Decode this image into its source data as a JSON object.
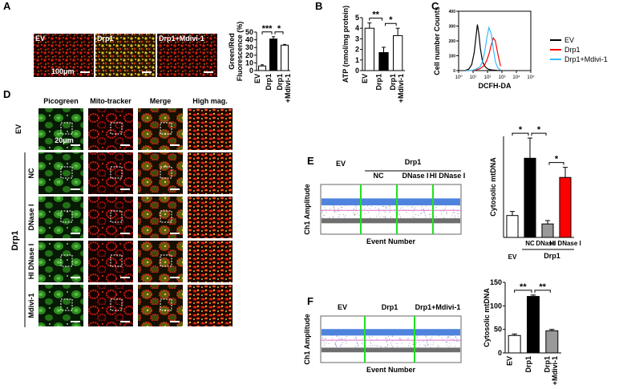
{
  "panel_labels": [
    "A",
    "B",
    "C",
    "D",
    "E",
    "F"
  ],
  "panel_a_images": {
    "labels": [
      "EV",
      "Drp1",
      "Drp1+Mdivi-1"
    ],
    "scale_bar": "100μm"
  },
  "panel_d_images": {
    "columns": [
      "Picogreen",
      "Mito-tracker",
      "Merge",
      "High mag."
    ],
    "rows": [
      "EV",
      "NC",
      "DNase I",
      "HI DNase I",
      "Mdivi-1"
    ],
    "group_label": "Drp1",
    "scale_bar": "20μm"
  },
  "panel_e_droplets": {
    "y_label": "Ch1 Amplitude",
    "x_label": "Event Number",
    "labels": [
      "EV",
      "NC",
      "DNase I",
      "HI DNase I"
    ],
    "group_label": "Drp1"
  },
  "panel_f_droplets": {
    "y_label": "Ch1 Amplitude",
    "x_label": "Event Number",
    "labels": [
      "EV",
      "Drp1",
      "Drp1+Mdivi-1"
    ]
  },
  "chart_data": [
    {
      "type": "bar",
      "y_label": [
        "Green/Red",
        "Fluorescence (%)"
      ],
      "categories": [
        "EV",
        "Drp1",
        "Drp1\n+Mdivi-1"
      ],
      "values": [
        6,
        41,
        33
      ],
      "errors": [
        1.5,
        3,
        1
      ],
      "colors": [
        "#ffffff",
        "#000000",
        "#ffffff"
      ],
      "ylim": [
        0,
        50
      ],
      "yticks": [
        0,
        10,
        20,
        30,
        40,
        50
      ],
      "annotations": [
        "***",
        "*"
      ]
    },
    {
      "type": "bar",
      "y_label": [
        "ATP (nmol/mg protein)"
      ],
      "categories": [
        "EV",
        "Drp1",
        "Drp1\n+Mdivi-1"
      ],
      "values": [
        4.0,
        1.7,
        3.3
      ],
      "errors": [
        0.5,
        0.5,
        0.7
      ],
      "colors": [
        "#ffffff",
        "#000000",
        "#ffffff"
      ],
      "ylim": [
        0,
        5
      ],
      "yticks": [
        0,
        1,
        2,
        3,
        4,
        5
      ],
      "annotations": [
        "**",
        "*"
      ]
    },
    {
      "type": "line",
      "y_label": [
        "Cell number Counts"
      ],
      "x_label": "DCFH-DA",
      "log_x": true,
      "xlim": [
        1,
        100000
      ],
      "xticks": [
        {
          "value": 1,
          "label": "10⁰"
        },
        {
          "value": 10,
          "label": "10¹"
        },
        {
          "value": 100,
          "label": "10²"
        },
        {
          "value": 1000,
          "label": "10³"
        },
        {
          "value": 10000,
          "label": "10⁴"
        },
        {
          "value": 100000,
          "label": "10⁵"
        }
      ],
      "ylim": [
        0,
        400
      ],
      "yticks": [
        0,
        100,
        200,
        300,
        400
      ],
      "x": [
        3,
        5,
        8,
        12,
        16,
        20,
        25,
        32,
        45,
        65,
        90,
        125,
        180,
        250,
        350,
        500,
        800
      ],
      "series": [
        {
          "name": "EV",
          "color": "#000000",
          "values": [
            2,
            10,
            40,
            120,
            230,
            310,
            250,
            150,
            60,
            30,
            15,
            8,
            5,
            3,
            2,
            1,
            0
          ]
        },
        {
          "name": "Drp1",
          "color": "#ff0000",
          "values": [
            0,
            0,
            1,
            3,
            5,
            8,
            10,
            15,
            25,
            40,
            70,
            110,
            170,
            220,
            200,
            120,
            30
          ]
        },
        {
          "name": "Drp1+Mdivi-1",
          "color": "#33bbff",
          "values": [
            0,
            0,
            2,
            5,
            10,
            15,
            20,
            30,
            60,
            130,
            220,
            290,
            250,
            150,
            60,
            20,
            3
          ]
        }
      ],
      "legend": "right"
    },
    {
      "type": "bar",
      "y_label": [
        "Cytosolic mtDNA"
      ],
      "categories": [
        "EV",
        "NC",
        "DNase I",
        "HI DNase I"
      ],
      "group_label": "Drp1",
      "values": [
        65,
        235,
        40,
        178
      ],
      "errors": [
        12,
        60,
        10,
        30
      ],
      "colors": [
        "#ffffff",
        "#000000",
        "#999999",
        "#ff0000"
      ],
      "ylim": [
        0,
        300
      ],
      "annotations": [
        "*",
        "*",
        "*"
      ]
    },
    {
      "type": "bar",
      "y_label": [
        "Cytosolic mtDNA"
      ],
      "categories": [
        "EV",
        "Drp1",
        "Drp1\n+Mdivi-1"
      ],
      "values": [
        37,
        120,
        47
      ],
      "errors": [
        3,
        3,
        3
      ],
      "colors": [
        "#ffffff",
        "#000000",
        "#999999"
      ],
      "ylim": [
        0,
        150
      ],
      "yticks": [
        0,
        50,
        100,
        150
      ],
      "annotations": [
        "**",
        "**"
      ]
    }
  ]
}
